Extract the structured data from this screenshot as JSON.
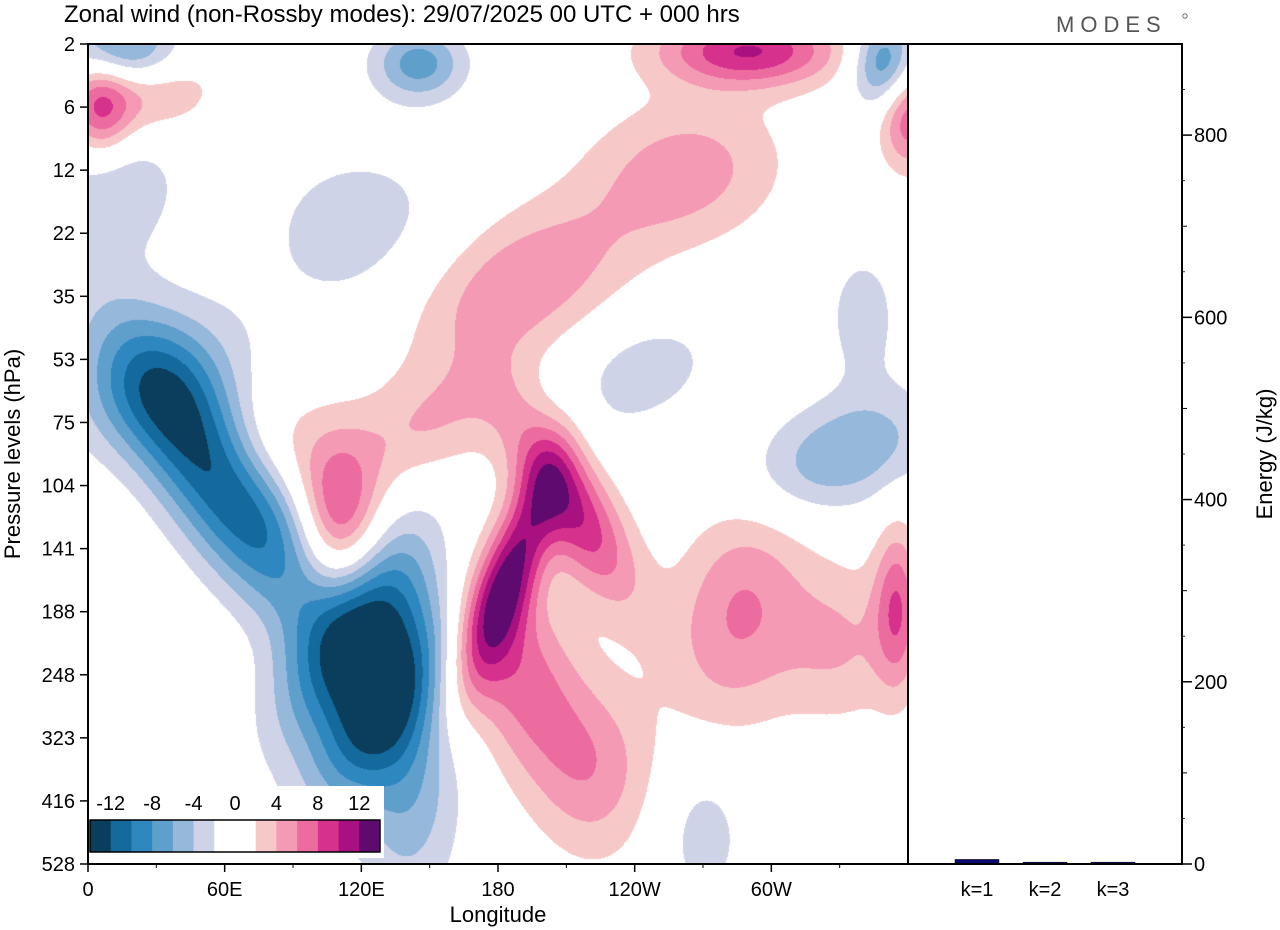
{
  "logo_text": "MODES",
  "chart_data": [
    {
      "type": "heatmap",
      "title": "Zonal wind (non-Rossby modes):  29/07/2025  00 UTC  + 000 hrs",
      "xlabel": "Longitude",
      "ylabel": "Pressure levels (hPa)",
      "x_ticks": [
        "0",
        "60E",
        "120E",
        "180",
        "120W",
        "60W"
      ],
      "x_tick_degrees": [
        0,
        60,
        120,
        180,
        240,
        300
      ],
      "xlim": [
        0,
        360
      ],
      "y_ticks": [
        "2",
        "6",
        "12",
        "22",
        "35",
        "53",
        "75",
        "104",
        "141",
        "188",
        "248",
        "323",
        "416",
        "528"
      ],
      "colorbar_labels": [
        "-12",
        "-8",
        "-4",
        "0",
        "4",
        "8",
        "12"
      ],
      "colorbar_colors": [
        "#0b3d5c",
        "#146a9c",
        "#2f87c0",
        "#5e9fcb",
        "#96b8db",
        "#cfd3e8",
        "#ffffff",
        "#ffffff",
        "#f7c8c8",
        "#f49ab5",
        "#ec6ca0",
        "#d6318d",
        "#a8117f",
        "#5e0a6e"
      ],
      "colorbar_range": [
        -14,
        14
      ],
      "features": [
        {
          "lon": 57,
          "level": 6.8,
          "value": -14,
          "sx": 18,
          "sy": 1.9,
          "rot": -35
        },
        {
          "lon": 118,
          "level": 9.3,
          "value": -12,
          "sx": 17,
          "sy": 1.3,
          "rot": 30
        },
        {
          "lon": 128,
          "level": 10.6,
          "value": -9,
          "sx": 14,
          "sy": 1.2,
          "rot": 30
        },
        {
          "lon": 140,
          "level": 11.6,
          "value": -6,
          "sx": 16,
          "sy": 1.4,
          "rot": 0
        },
        {
          "lon": 110,
          "level": 7.6,
          "value": 9,
          "sx": 13,
          "sy": 0.9,
          "rot": 0
        },
        {
          "lon": 185,
          "level": 8.4,
          "value": 11,
          "sx": 9,
          "sy": 1.3,
          "rot": 20
        },
        {
          "lon": 212,
          "level": 7.3,
          "value": 10,
          "sx": 12,
          "sy": 1.2,
          "rot": -30
        },
        {
          "lon": 190,
          "level": 10.0,
          "value": 7,
          "sx": 18,
          "sy": 1.4,
          "rot": -20
        },
        {
          "lon": 188,
          "level": 3.8,
          "value": 6,
          "sx": 38,
          "sy": 0.8,
          "rot": -25
        },
        {
          "lon": 262,
          "level": 2.0,
          "value": 5,
          "sx": 30,
          "sy": 0.8,
          "rot": -10
        },
        {
          "lon": 285,
          "level": 9.0,
          "value": 6,
          "sx": 20,
          "sy": 1.3,
          "rot": 10
        },
        {
          "lon": 355,
          "level": 8.9,
          "value": 7,
          "sx": 7,
          "sy": 0.9,
          "rot": 0
        },
        {
          "lon": 290,
          "level": 0.1,
          "value": 10,
          "sx": 28,
          "sy": 0.4,
          "rot": 0
        },
        {
          "lon": 25,
          "level": 0.8,
          "value": 5,
          "sx": 22,
          "sy": 0.5,
          "rot": -15
        },
        {
          "lon": 5,
          "level": 1.0,
          "value": 8,
          "sx": 10,
          "sy": 0.6,
          "rot": 0
        },
        {
          "lon": 360,
          "level": 1.1,
          "value": 8,
          "sx": 9,
          "sy": 0.6,
          "rot": 0
        },
        {
          "lon": 15,
          "level": 0.1,
          "value": -8,
          "sx": 18,
          "sy": 0.4,
          "rot": 0
        },
        {
          "lon": 145,
          "level": 0.3,
          "value": -7,
          "sx": 14,
          "sy": 0.4,
          "rot": 0
        },
        {
          "lon": 350,
          "level": 0.3,
          "value": -9,
          "sx": 10,
          "sy": 0.5,
          "rot": 0
        },
        {
          "lon": 30,
          "level": 5.3,
          "value": -4,
          "sx": 30,
          "sy": 0.7,
          "rot": -30
        },
        {
          "lon": 330,
          "level": 6.5,
          "value": -6,
          "sx": 30,
          "sy": 0.6,
          "rot": -20
        },
        {
          "lon": 120,
          "level": 3.0,
          "value": -3,
          "sx": 35,
          "sy": 1.1,
          "rot": 0
        },
        {
          "lon": 10,
          "level": 2.0,
          "value": -4,
          "sx": 20,
          "sy": 0.9,
          "rot": -15
        },
        {
          "lon": 75,
          "level": 6.5,
          "value": 4,
          "sx": 20,
          "sy": 0.7,
          "rot": -25
        },
        {
          "lon": 150,
          "level": 6.0,
          "value": 4,
          "sx": 30,
          "sy": 0.6,
          "rot": -30
        },
        {
          "lon": 225,
          "level": 11.5,
          "value": 4,
          "sx": 18,
          "sy": 1.0,
          "rot": 0
        },
        {
          "lon": 270,
          "level": 12.5,
          "value": -3,
          "sx": 14,
          "sy": 0.9,
          "rot": 0
        },
        {
          "lon": 330,
          "level": 9.5,
          "value": 4,
          "sx": 20,
          "sy": 0.9,
          "rot": 0
        },
        {
          "lon": 240,
          "level": 5.2,
          "value": -3,
          "sx": 30,
          "sy": 0.7,
          "rot": -20
        },
        {
          "lon": 340,
          "level": 4.3,
          "value": -3,
          "sx": 12,
          "sy": 0.8,
          "rot": 0
        }
      ]
    },
    {
      "type": "bar",
      "ylabel": "Energy (J/kg)",
      "categories": [
        "k=1",
        "k=2",
        "k=3"
      ],
      "values": [
        5,
        2,
        2
      ],
      "ylim": [
        0,
        900
      ],
      "y_ticks": [
        0,
        200,
        400,
        600,
        800
      ],
      "bar_color": "#0a0a6e"
    }
  ]
}
